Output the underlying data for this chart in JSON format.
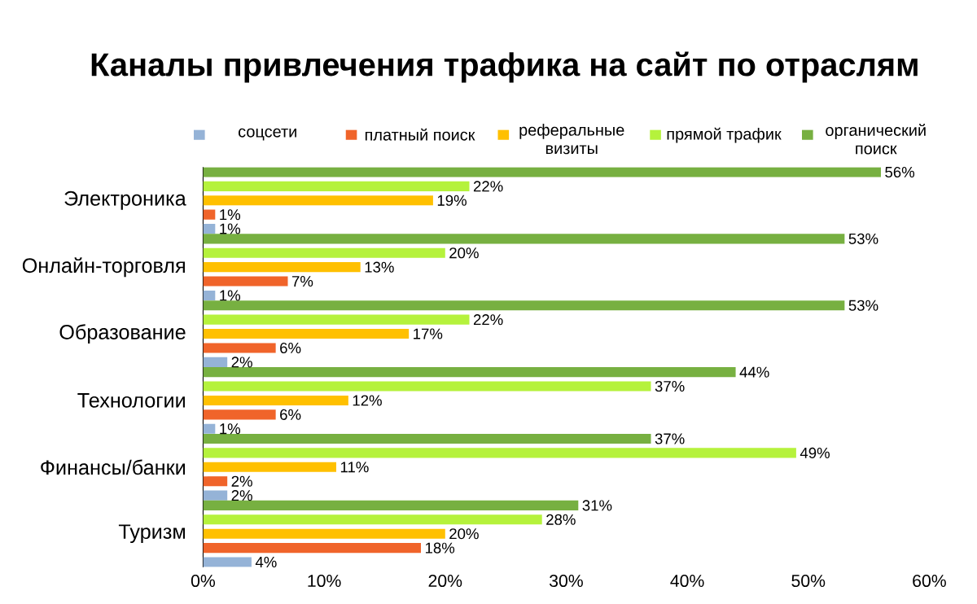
{
  "chart_data": {
    "type": "bar",
    "orientation": "horizontal",
    "title": "Каналы привлечения трафика на сайт по отраслям",
    "categories": [
      "Электроника",
      "Онлайн-торговля",
      "Образование",
      "Технологии",
      "Финансы/банки",
      "Туризм"
    ],
    "series": [
      {
        "name": "соцсети",
        "color": "#95b3d7",
        "values": [
          1,
          1,
          2,
          1,
          2,
          4
        ],
        "value_labels": [
          "1%",
          "1%",
          "2%",
          "1%",
          "2%",
          "4%"
        ]
      },
      {
        "name": "платный поиск",
        "color": "#f0642a",
        "values": [
          1,
          7,
          6,
          6,
          2,
          18
        ],
        "value_labels": [
          "1%",
          "7%",
          "6%",
          "6%",
          "2%",
          "18%"
        ]
      },
      {
        "name": "реферальные визиты",
        "color": "#ffc000",
        "values": [
          19,
          13,
          17,
          12,
          11,
          20
        ],
        "value_labels": [
          "19%",
          "13%",
          "17%",
          "12%",
          "11%",
          "20%"
        ]
      },
      {
        "name": "прямой трафик",
        "color": "#b5f23c",
        "values": [
          22,
          20,
          22,
          37,
          49,
          28
        ],
        "value_labels": [
          "22%",
          "20%",
          "22%",
          "37%",
          "49%",
          "28%"
        ]
      },
      {
        "name": "органический поиск",
        "color": "#77b041",
        "values": [
          56,
          53,
          53,
          44,
          37,
          31
        ],
        "value_labels": [
          "56%",
          "53%",
          "53%",
          "44%",
          "37%",
          "31%"
        ]
      }
    ],
    "xlim": [
      0,
      60
    ],
    "xticks": [
      {
        "value": 0,
        "label": "0%"
      },
      {
        "value": 10,
        "label": "10%"
      },
      {
        "value": 20,
        "label": "20%"
      },
      {
        "value": 30,
        "label": "30%"
      },
      {
        "value": 40,
        "label": "40%"
      },
      {
        "value": 50,
        "label": "50%"
      },
      {
        "value": 60,
        "label": "60%"
      }
    ],
    "legend": "top",
    "grid": false
  }
}
